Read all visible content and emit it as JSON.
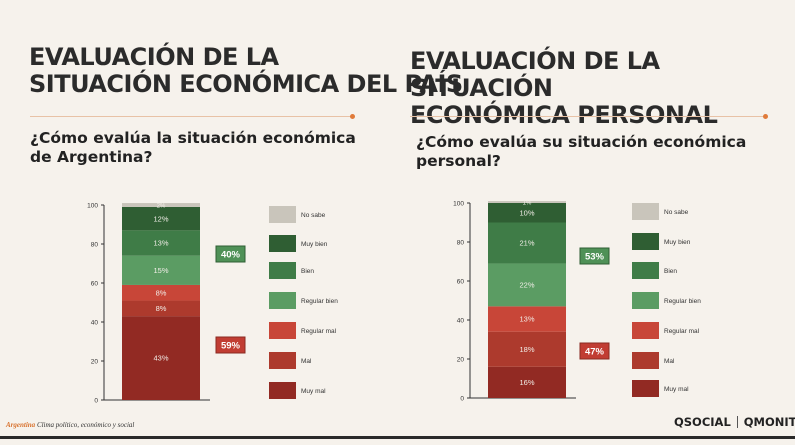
{
  "left": {
    "title_lines": [
      "EVALUACIÓN DE LA",
      "SITUACIÓN ECONÓMICA DEL PAÍS"
    ],
    "question": "¿Cómo evalúa la situación económica de Argentina?"
  },
  "right": {
    "title_lines": [
      "EVALUACIÓN DE LA SITUACIÓN",
      "ECONÓMICA PERSONAL"
    ],
    "question": "¿Cómo evalúa su situación económica personal?"
  },
  "footer": {
    "source_bold": "Argentina",
    "source_rest": " Clima político, económico y social",
    "logo1": "QSOCIAL",
    "logo2": "QMONITOR"
  },
  "colors": {
    "no_sabe": "#c9c5bb",
    "muy_bien": "#2f5e33",
    "bien": "#3f7c47",
    "regular_bien": "#5b9c63",
    "regular_mal": "#c84638",
    "mal": "#ad3a2d",
    "muy_mal": "#922a23",
    "positive_box": "#4f9157",
    "negative_box": "#c13d33"
  },
  "chart_data": [
    {
      "type": "bar",
      "stacked": true,
      "ylim": [
        0,
        100
      ],
      "yticks": [
        "0",
        "20",
        "40",
        "60",
        "80",
        "100"
      ],
      "series": [
        {
          "name": "Muy mal",
          "value": 43,
          "label": "43%"
        },
        {
          "name": "Mal",
          "value": 8,
          "label": "8%"
        },
        {
          "name": "Regular mal",
          "value": 8,
          "label": "8%"
        },
        {
          "name": "Regular bien",
          "value": 15,
          "label": "15%"
        },
        {
          "name": "Bien",
          "value": 13,
          "label": "13%"
        },
        {
          "name": "Muy bien",
          "value": 12,
          "label": "12%"
        },
        {
          "name": "No sabe",
          "value": 2,
          "label": "2%"
        }
      ],
      "legend": [
        "No sabe",
        "Muy bien",
        "Bien",
        "Regular bien",
        "Regular mal",
        "Mal",
        "Muy mal"
      ],
      "totals": {
        "positive": "40%",
        "negative": "59%"
      }
    },
    {
      "type": "bar",
      "stacked": true,
      "ylim": [
        0,
        100
      ],
      "yticks": [
        "0",
        "20",
        "40",
        "60",
        "80",
        "100"
      ],
      "series": [
        {
          "name": "Muy mal",
          "value": 16,
          "label": "16%"
        },
        {
          "name": "Mal",
          "value": 18,
          "label": "18%"
        },
        {
          "name": "Regular mal",
          "value": 13,
          "label": "13%"
        },
        {
          "name": "Regular bien",
          "value": 22,
          "label": "22%"
        },
        {
          "name": "Bien",
          "value": 21,
          "label": "21%"
        },
        {
          "name": "Muy bien",
          "value": 10,
          "label": "10%"
        },
        {
          "name": "No sabe",
          "value": 1,
          "label": "1%"
        }
      ],
      "legend": [
        "No sabe",
        "Muy bien",
        "Bien",
        "Regular bien",
        "Regular mal",
        "Mal",
        "Muy mal"
      ],
      "totals": {
        "positive": "53%",
        "negative": "47%"
      }
    }
  ]
}
